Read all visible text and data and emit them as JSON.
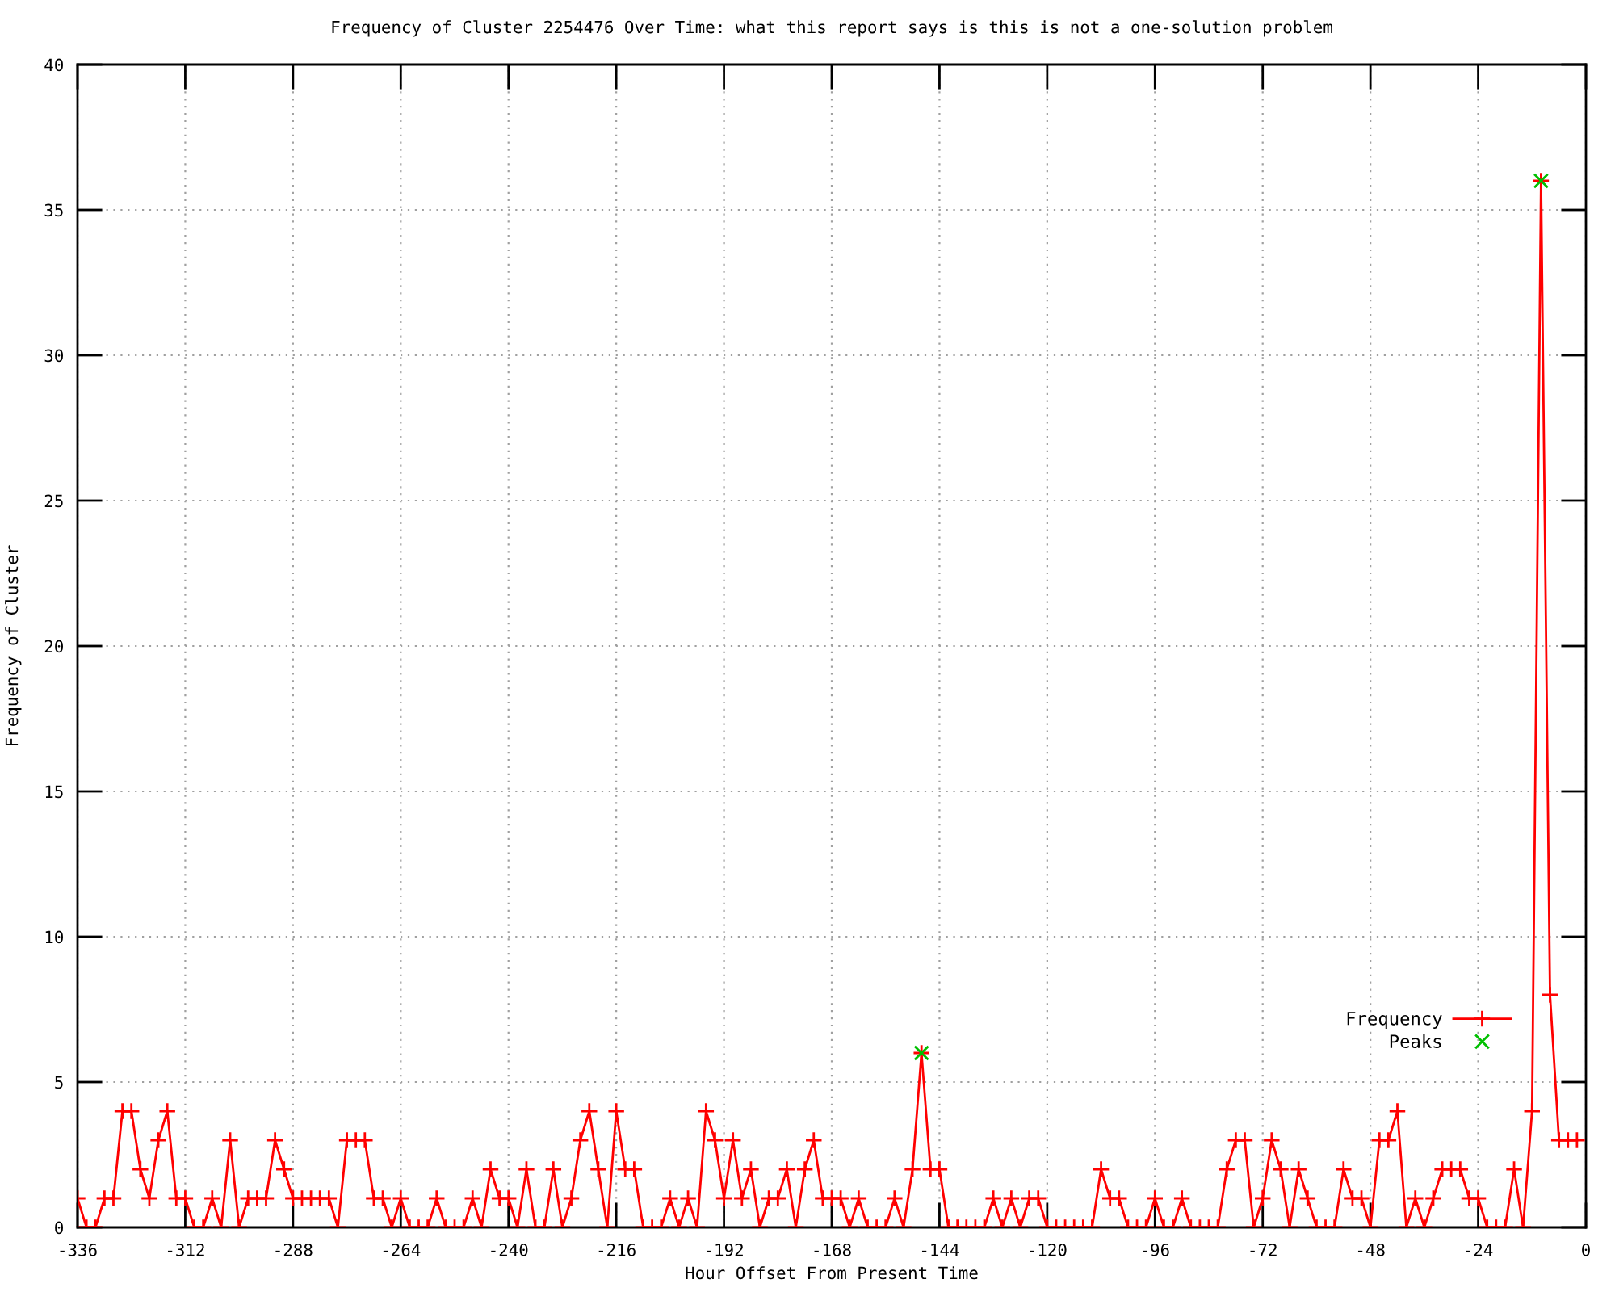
{
  "chart_data": {
    "type": "line",
    "title": "Frequency of Cluster 2254476 Over Time: what this report says is this is not a one-solution problem",
    "xlabel": "Hour Offset From Present Time",
    "ylabel": "Frequency of Cluster",
    "xlim": [
      -336,
      0
    ],
    "xticks": [
      -336,
      -312,
      -288,
      -264,
      -240,
      -216,
      -192,
      -168,
      -144,
      -120,
      -96,
      -72,
      -48,
      -24,
      0
    ],
    "ylim": [
      0,
      40
    ],
    "yticks": [
      0,
      5,
      10,
      15,
      20,
      25,
      30,
      35,
      40
    ],
    "grid": true,
    "legend": "bottom right",
    "series": [
      {
        "name": "Frequency",
        "color": "#ff0000",
        "marker": "cross",
        "line_style": "solid",
        "x": [
          -336,
          -334,
          -332,
          -330,
          -328,
          -326,
          -324,
          -322,
          -320,
          -318,
          -316,
          -314,
          -312,
          -310,
          -308,
          -306,
          -304,
          -302,
          -300,
          -298,
          -296,
          -294,
          -292,
          -290,
          -288,
          -286,
          -284,
          -282,
          -280,
          -278,
          -276,
          -274,
          -272,
          -270,
          -268,
          -266,
          -264,
          -262,
          -260,
          -258,
          -256,
          -254,
          -252,
          -250,
          -248,
          -246,
          -244,
          -242,
          -240,
          -238,
          -236,
          -234,
          -232,
          -230,
          -228,
          -226,
          -224,
          -222,
          -220,
          -218,
          -216,
          -214,
          -212,
          -210,
          -208,
          -206,
          -204,
          -202,
          -200,
          -198,
          -196,
          -194,
          -192,
          -190,
          -188,
          -186,
          -184,
          -182,
          -180,
          -178,
          -176,
          -174,
          -172,
          -170,
          -168,
          -166,
          -164,
          -162,
          -160,
          -158,
          -156,
          -154,
          -152,
          -150,
          -148,
          -146,
          -144,
          -142,
          -140,
          -138,
          -136,
          -134,
          -132,
          -130,
          -128,
          -126,
          -124,
          -122,
          -120,
          -118,
          -116,
          -114,
          -112,
          -110,
          -108,
          -106,
          -104,
          -102,
          -100,
          -98,
          -96,
          -94,
          -92,
          -90,
          -88,
          -86,
          -84,
          -82,
          -80,
          -78,
          -76,
          -74,
          -72,
          -70,
          -68,
          -66,
          -64,
          -62,
          -60,
          -58,
          -56,
          -54,
          -52,
          -50,
          -48,
          -46,
          -44,
          -42,
          -40,
          -38,
          -36,
          -34,
          -32,
          -30,
          -28,
          -26,
          -24,
          -22,
          -20,
          -18,
          -16,
          -14,
          -12,
          -10,
          -8,
          -6,
          -4,
          -2
        ],
        "values": [
          1,
          0,
          0,
          1,
          1,
          4,
          4,
          2,
          1,
          3,
          4,
          1,
          1,
          0,
          0,
          1,
          0,
          3,
          0,
          1,
          1,
          1,
          3,
          2,
          1,
          1,
          1,
          1,
          1,
          0,
          3,
          3,
          3,
          1,
          1,
          0,
          1,
          0,
          0,
          0,
          1,
          0,
          0,
          0,
          1,
          0,
          2,
          1,
          1,
          0,
          2,
          0,
          0,
          2,
          0,
          1,
          3,
          4,
          2,
          0,
          4,
          2,
          2,
          0,
          0,
          0,
          1,
          0,
          1,
          0,
          4,
          3,
          1,
          3,
          1,
          2,
          0,
          1,
          1,
          2,
          0,
          2,
          3,
          1,
          1,
          1,
          0,
          1,
          0,
          0,
          0,
          1,
          0,
          2,
          6,
          2,
          2,
          0,
          0,
          0,
          0,
          0,
          1,
          0,
          1,
          0,
          1,
          1,
          0,
          0,
          0,
          0,
          0,
          0,
          2,
          1,
          1,
          0,
          0,
          0,
          1,
          0,
          0,
          1,
          0,
          0,
          0,
          0,
          2,
          3,
          3,
          0,
          1,
          3,
          2,
          0,
          2,
          1,
          0,
          0,
          0,
          2,
          1,
          1,
          0,
          3,
          3,
          4,
          0,
          1,
          0,
          1,
          2,
          2,
          2,
          1,
          1,
          0,
          0,
          0,
          2,
          0,
          4,
          36,
          8,
          3,
          3,
          3
        ]
      },
      {
        "name": "Peaks",
        "type": "scatter",
        "color": "#00c000",
        "marker": "x",
        "x": [
          -148,
          -10
        ],
        "values": [
          6,
          36
        ]
      }
    ]
  }
}
